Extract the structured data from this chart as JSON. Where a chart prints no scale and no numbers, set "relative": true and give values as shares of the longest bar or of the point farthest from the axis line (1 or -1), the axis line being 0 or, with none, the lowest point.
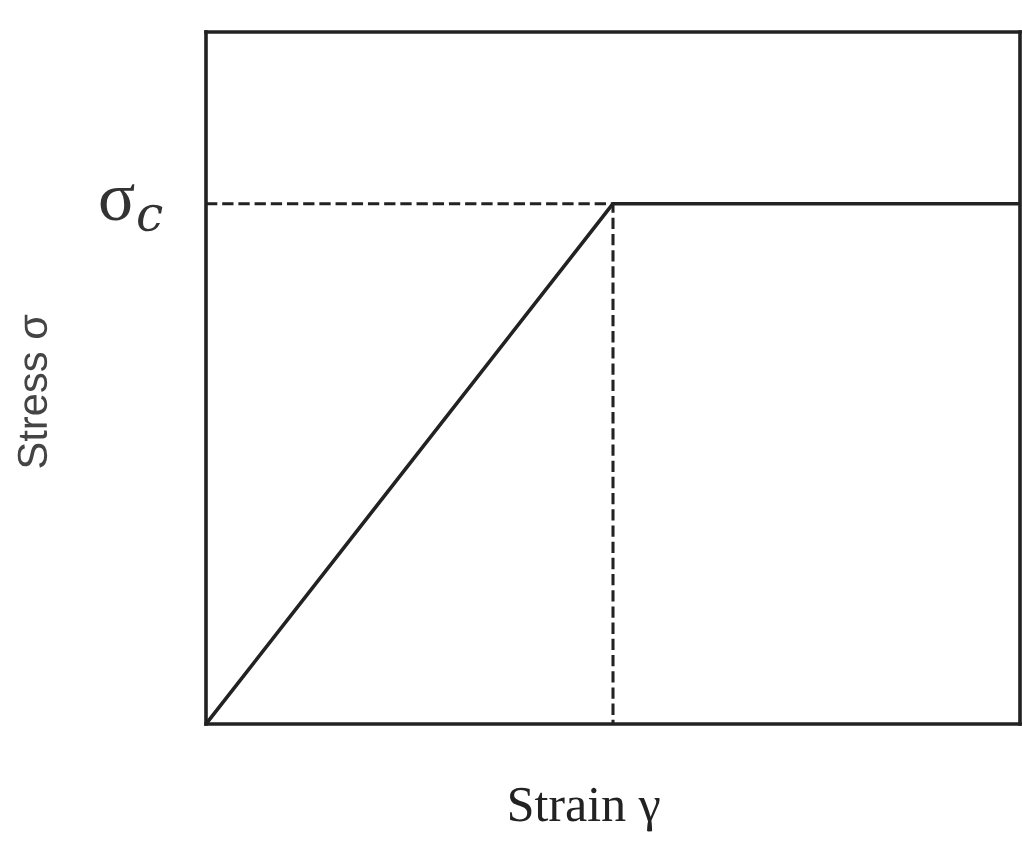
{
  "chart_data": {
    "type": "line",
    "relative": true,
    "xlabel": "Strain γ",
    "ylabel": "Stress σ",
    "categories": [
      null,
      null,
      null
    ],
    "series": [
      {
        "color": "#222222",
        "values": [
          0,
          1,
          1
        ]
      }
    ],
    "ref_lines": [
      {
        "axis": "y",
        "value": 1,
        "label": "σ$_{c}$",
        "line_style": "dashed",
        "color": "#222222"
      }
    ],
    "marker": "none",
    "line_style": "solid"
  }
}
